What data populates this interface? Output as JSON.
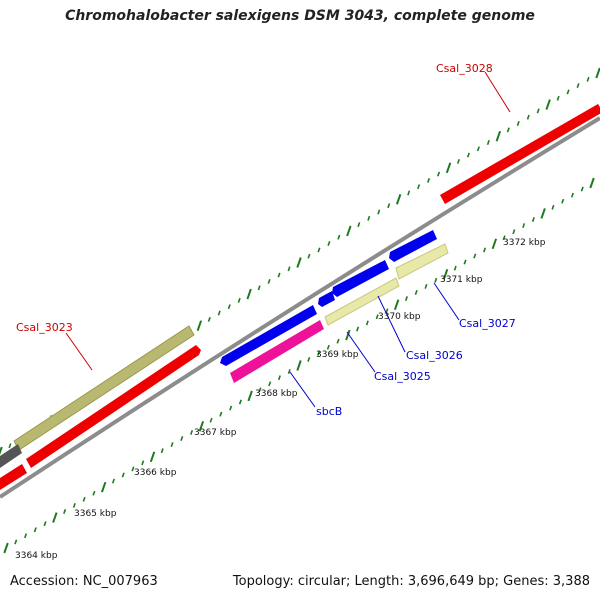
{
  "title": "Chromohalobacter salexigens DSM 3043, complete genome",
  "footer": {
    "accession": "Accession: NC_007963",
    "summary": "Topology: circular; Length: 3,696,649 bp; Genes: 3,388"
  },
  "colors": {
    "backbone": "#8c8c8c",
    "tick": "#1f7a1f",
    "forward_label": "#cc0000",
    "reverse_label": "#0000cc"
  },
  "kbp_labels": [
    "3364 kbp",
    "3365 kbp",
    "3366 kbp",
    "3367 kbp",
    "3368 kbp",
    "3369 kbp",
    "3370 kbp",
    "3371 kbp",
    "3372 kbp"
  ],
  "gene_labels": [
    {
      "name": "Csal_3028",
      "strand": "forward"
    },
    {
      "name": "Csal_3023",
      "strand": "forward"
    },
    {
      "name": "sbcB",
      "strand": "reverse"
    },
    {
      "name": "Csal_3025",
      "strand": "reverse"
    },
    {
      "name": "Csal_3026",
      "strand": "reverse"
    },
    {
      "name": "Csal_3027",
      "strand": "reverse"
    }
  ],
  "features": [
    {
      "id": "f1",
      "color": "#e8e8a8"
    },
    {
      "id": "f2",
      "color": "#e8e8a8"
    },
    {
      "id": "f3",
      "color": "#0000ee"
    },
    {
      "id": "f4",
      "color": "#0000ee"
    },
    {
      "id": "f5",
      "color": "#0000ee"
    },
    {
      "id": "f6",
      "color": "#0000ee"
    },
    {
      "id": "f7",
      "color": "#ee1199"
    },
    {
      "id": "f8",
      "color": "#ee0000"
    },
    {
      "id": "f9",
      "color": "#ee0000"
    },
    {
      "id": "f10",
      "color": "#ee0000"
    },
    {
      "id": "f11",
      "color": "#b8b870"
    },
    {
      "id": "f12",
      "color": "#555555"
    }
  ]
}
